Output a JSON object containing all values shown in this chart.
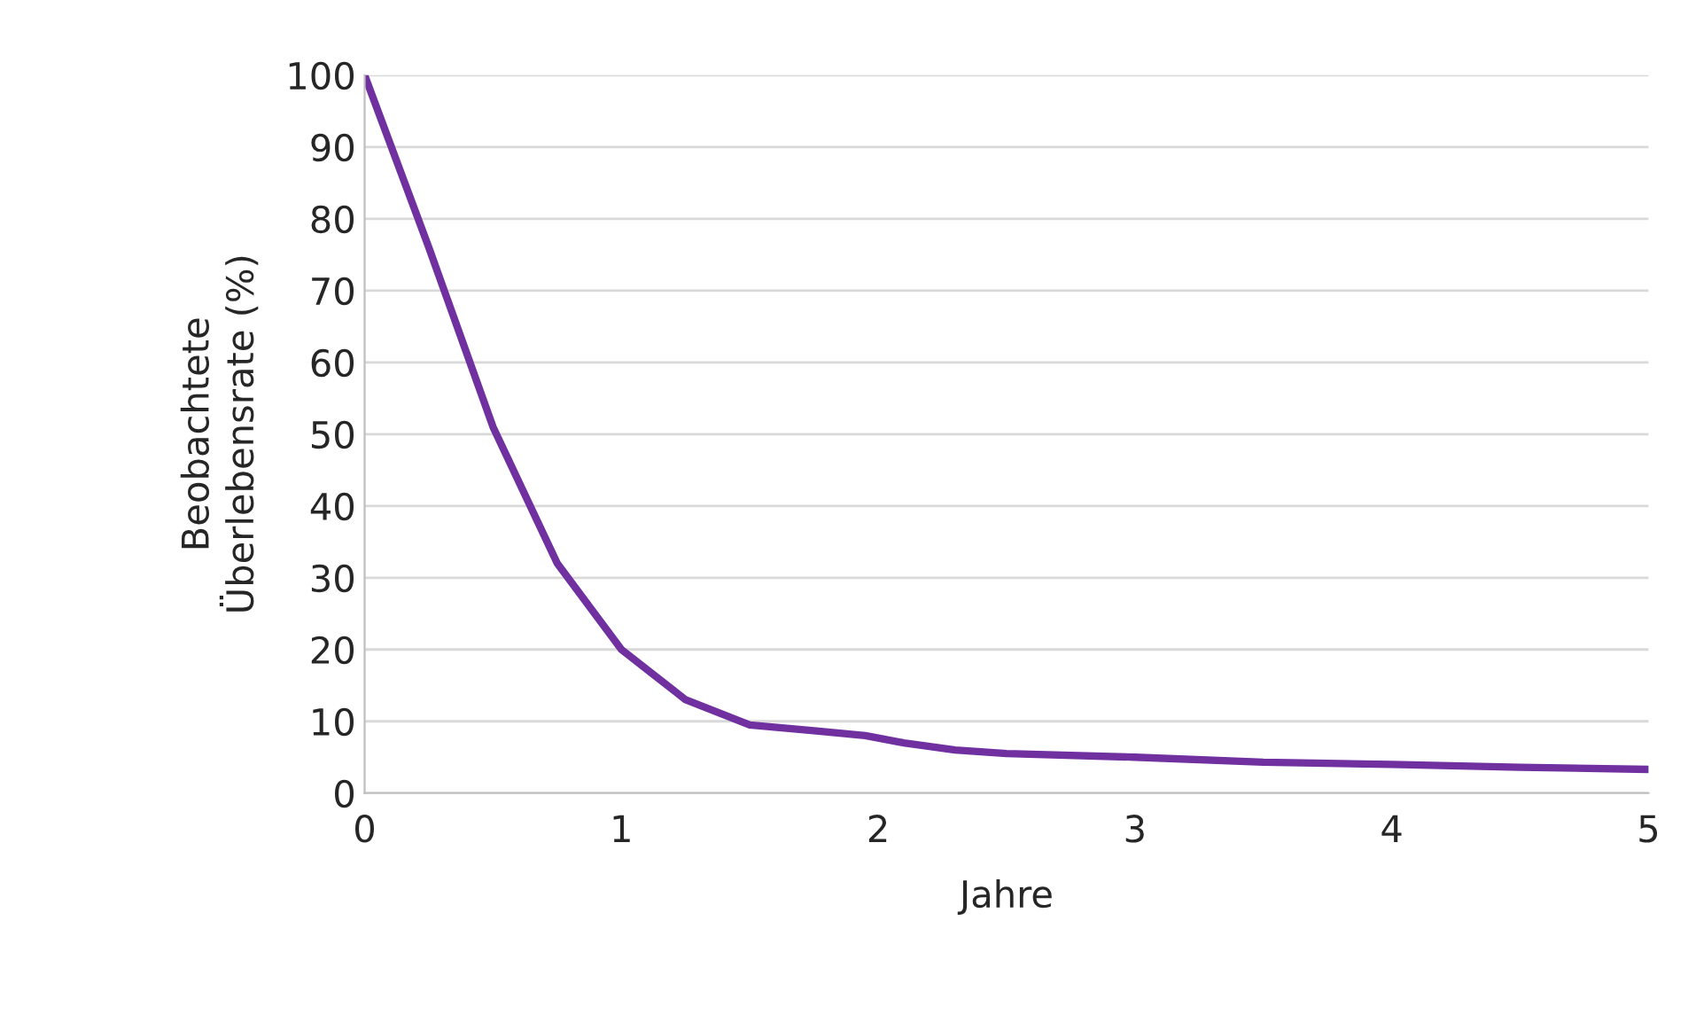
{
  "chart_data": {
    "type": "line",
    "xlabel": "Jahre",
    "ylabel": "Beobachtete\nÜberlebensrate (%)",
    "x": [
      0,
      0.25,
      0.5,
      0.75,
      1,
      1.25,
      1.5,
      1.75,
      1.95,
      2.1,
      2.3,
      2.5,
      3,
      3.5,
      4,
      4.5,
      5
    ],
    "series": [
      {
        "color": "#7030a0",
        "values": [
          100,
          76,
          51,
          32,
          20,
          13,
          9.5,
          8.7,
          8,
          7,
          6,
          5.5,
          5,
          4.3,
          4,
          3.6,
          3.3
        ]
      }
    ],
    "xlim": [
      0,
      5
    ],
    "xticks": [
      0,
      1,
      2,
      3,
      4,
      5
    ],
    "ylim": [
      0,
      100
    ],
    "yticks": [
      0,
      10,
      20,
      30,
      40,
      50,
      60,
      70,
      80,
      90,
      100
    ],
    "grid": "y",
    "marker": "none",
    "line_style": "solid",
    "legend": false
  }
}
